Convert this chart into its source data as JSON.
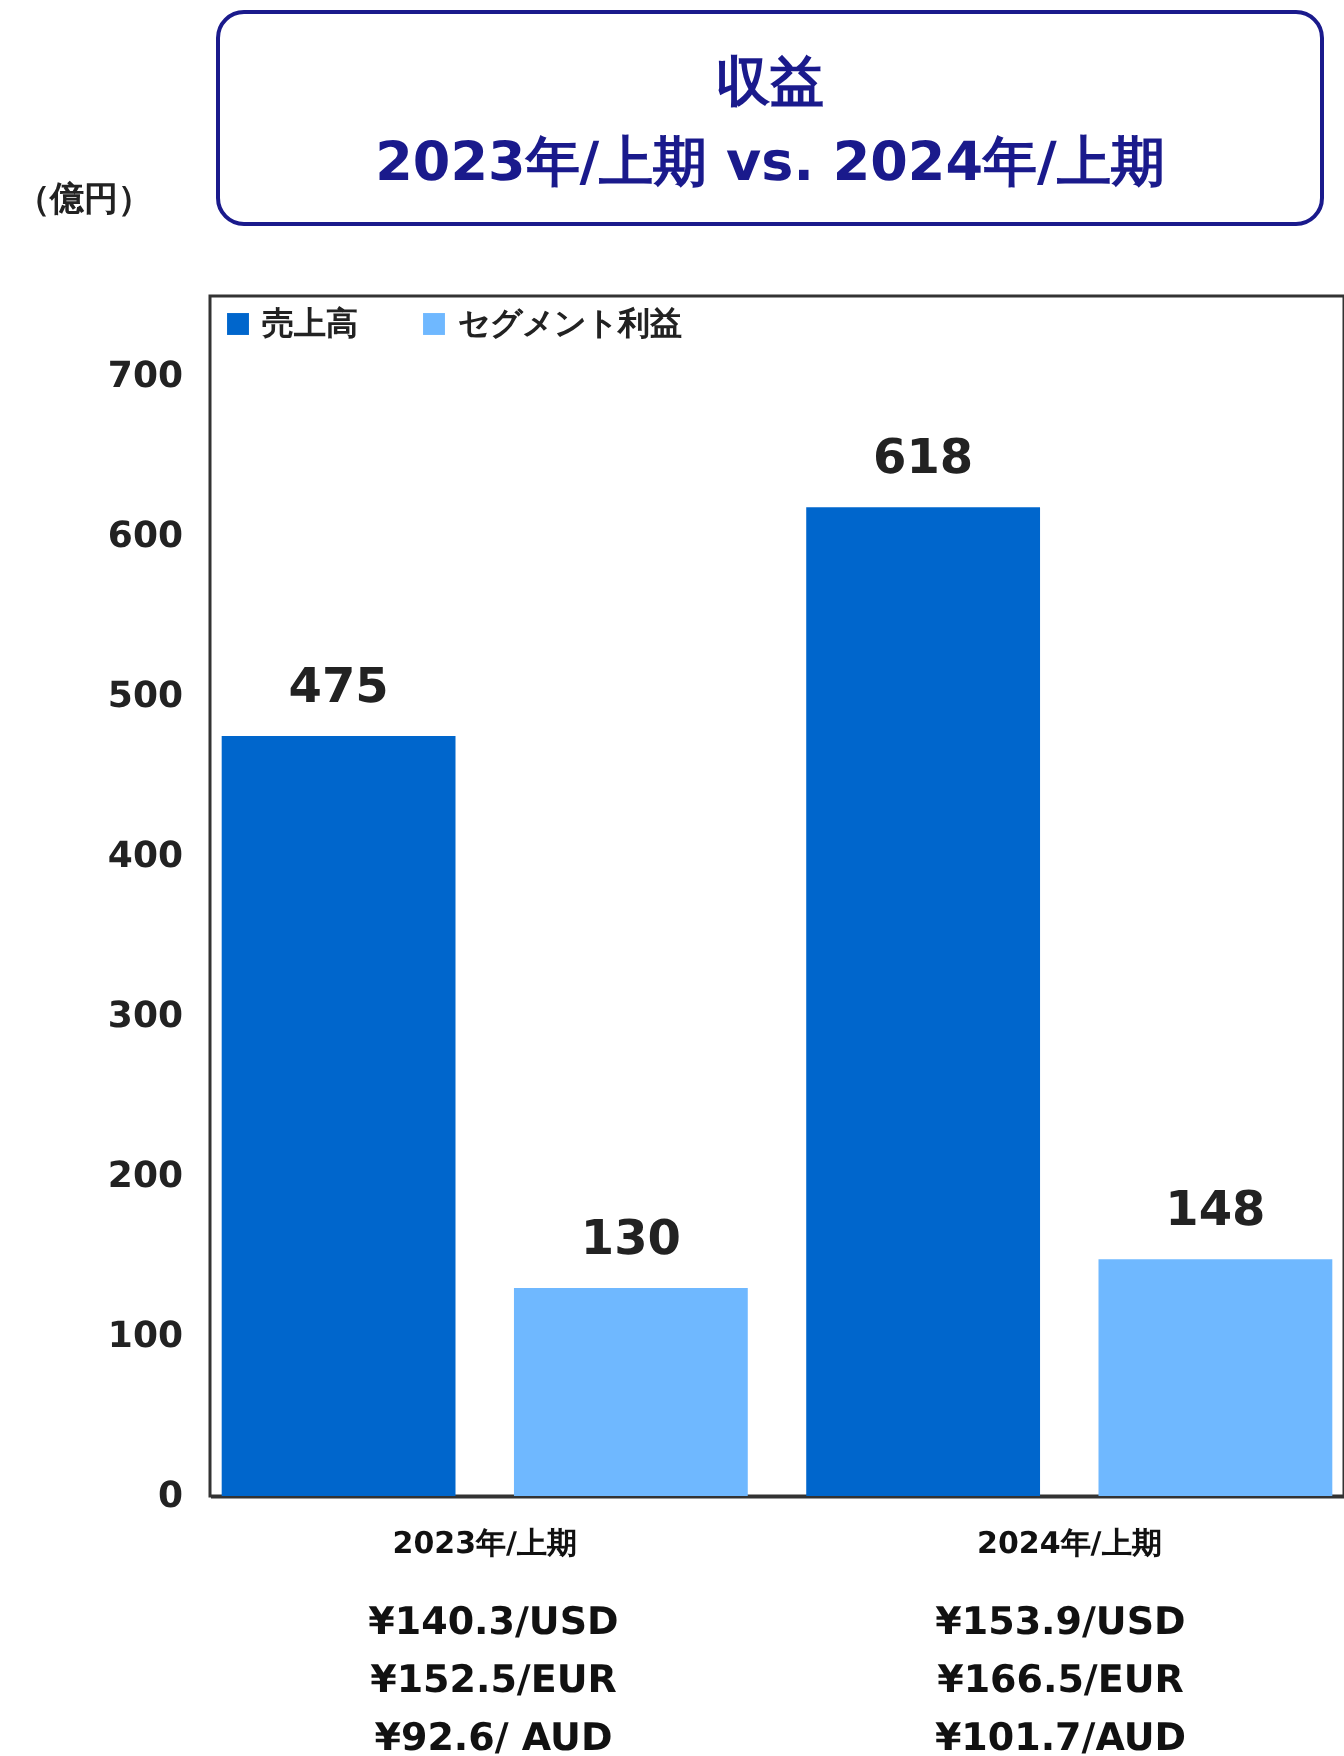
{
  "chart_data": {
    "type": "bar",
    "title": "収益",
    "subtitle": "2023年/上期 vs. 2024年/上期",
    "ylabel": "（億円）",
    "categories": [
      "2023年/上期",
      "2024年/上期"
    ],
    "series": [
      {
        "name": "売上高",
        "color": "#0066cc",
        "values": [
          475,
          618
        ]
      },
      {
        "name": "セグメント利益",
        "color": "#6fb8ff",
        "values": [
          130,
          148
        ]
      }
    ],
    "ylim": [
      0,
      750
    ],
    "yticks": [
      0,
      100,
      200,
      300,
      400,
      500,
      600,
      700
    ],
    "grid": false,
    "legend": "top left",
    "data_labels": true,
    "annotations": [
      "¥140.3/USD\n¥152.5/EUR\n¥92.6/ AUD",
      "¥153.9/USD\n¥166.5/EUR\n¥101.7/AUD"
    ]
  }
}
